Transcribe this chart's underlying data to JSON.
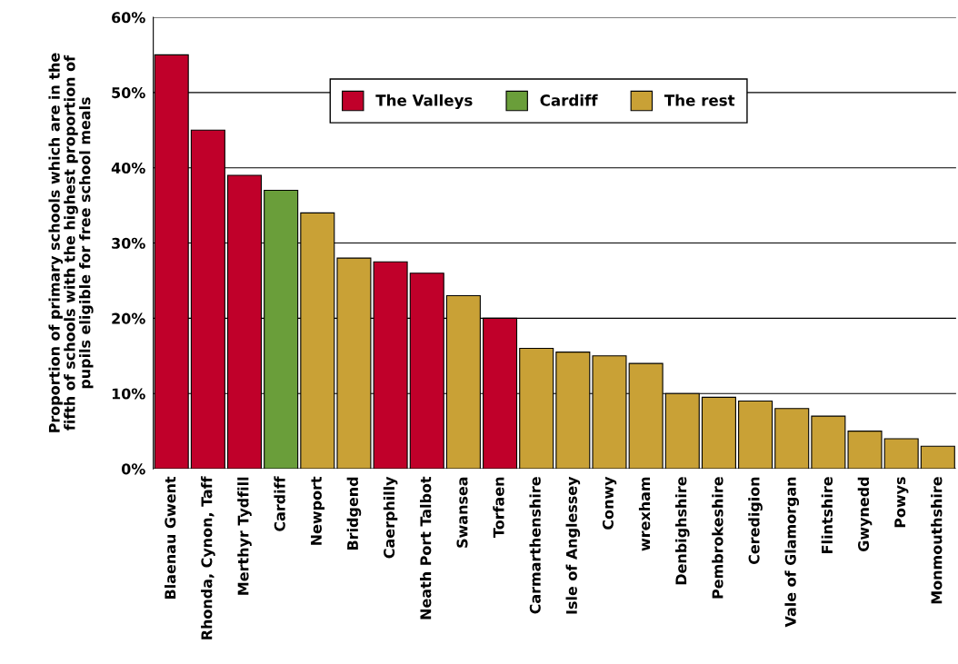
{
  "chart_data": {
    "type": "bar",
    "ylabel": "Proportion of primary schools which are in the\nfifth of schools with the highest proportion of\npupils eligible for free school meals",
    "categories": [
      "Blaenau Gwent",
      "Rhonda, Cynon, Taff",
      "Merthyr Tydfill",
      "Cardiff",
      "Newport",
      "Bridgend",
      "Caerphilly",
      "Neath Port Talbot",
      "Swansea",
      "Torfaen",
      "Carmarthenshire",
      "Isle of Anglessey",
      "Conwy",
      "wrexham",
      "Denbighshire",
      "Pembrokeshire",
      "Ceredigion",
      "Vale of Glamorgan",
      "Flintshire",
      "Gwynedd",
      "Powys",
      "Monmouthshire"
    ],
    "series": [
      {
        "name": "The Valleys",
        "color": "#c0002a",
        "values": [
          55,
          45,
          39,
          null,
          null,
          null,
          27.5,
          26,
          null,
          20,
          null,
          null,
          null,
          null,
          null,
          null,
          null,
          null,
          null,
          null,
          null,
          null
        ]
      },
      {
        "name": "Cardiff",
        "color": "#6a9e3a",
        "values": [
          null,
          null,
          null,
          37,
          null,
          null,
          null,
          null,
          null,
          null,
          null,
          null,
          null,
          null,
          null,
          null,
          null,
          null,
          null,
          null,
          null,
          null
        ]
      },
      {
        "name": "The rest",
        "color": "#c9a136",
        "values": [
          null,
          null,
          null,
          null,
          34,
          28,
          null,
          null,
          23,
          null,
          16,
          15.5,
          15,
          14,
          10,
          9.5,
          9,
          8,
          7,
          5,
          4,
          3
        ]
      }
    ],
    "ylim": [
      0,
      60
    ],
    "yticks": [
      {
        "value": 0,
        "label": "0%"
      },
      {
        "value": 10,
        "label": "10%"
      },
      {
        "value": 20,
        "label": "20%"
      },
      {
        "value": 30,
        "label": "30%"
      },
      {
        "value": 40,
        "label": "40%"
      },
      {
        "value": 50,
        "label": "50%"
      },
      {
        "value": 60,
        "label": "60%"
      }
    ],
    "grid": "y",
    "legend": "top"
  }
}
